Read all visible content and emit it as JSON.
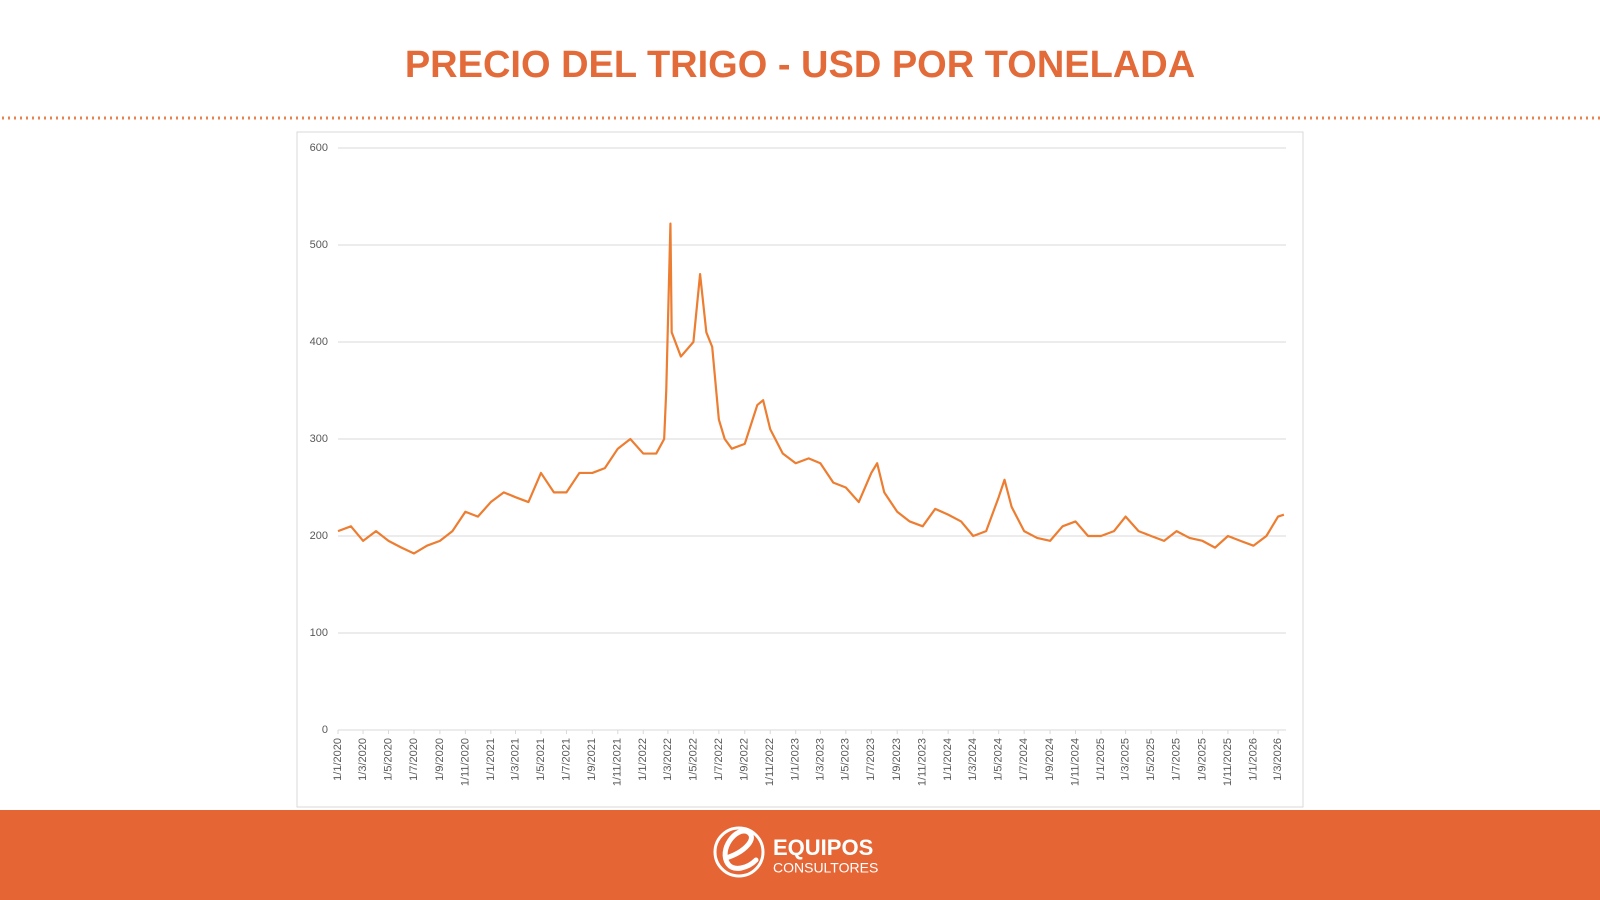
{
  "chart_data": {
    "type": "line",
    "title": "PRECIO DEL TRIGO - USD POR TONELADA",
    "x": [
      "1/1/2020",
      "1/2/2020",
      "1/3/2020",
      "1/4/2020",
      "1/5/2020",
      "1/6/2020",
      "1/7/2020",
      "1/8/2020",
      "1/9/2020",
      "1/10/2020",
      "1/11/2020",
      "1/12/2020",
      "1/1/2021",
      "1/2/2021",
      "1/3/2021",
      "1/4/2021",
      "1/5/2021",
      "1/6/2021",
      "1/7/2021",
      "1/8/2021",
      "1/9/2021",
      "1/10/2021",
      "1/11/2021",
      "1/12/2021",
      "1/1/2022",
      "1/2/2022",
      "20/2/2022",
      "25/2/2022",
      "7/3/2022",
      "10/3/2022",
      "1/4/2022",
      "1/5/2022",
      "17/5/2022",
      "1/6/2022",
      "15/6/2022",
      "1/7/2022",
      "15/7/2022",
      "1/8/2022",
      "1/9/2022",
      "1/10/2022",
      "15/10/2022",
      "1/11/2022",
      "1/12/2022",
      "1/1/2023",
      "1/2/2023",
      "1/3/2023",
      "1/4/2023",
      "1/5/2023",
      "1/6/2023",
      "1/7/2023",
      "15/7/2023",
      "1/8/2023",
      "1/9/2023",
      "1/10/2023",
      "1/11/2023",
      "1/12/2023",
      "1/1/2024",
      "1/2/2024",
      "1/3/2024",
      "1/4/2024",
      "1/5/2024",
      "15/5/2024",
      "1/6/2024",
      "1/7/2024",
      "1/8/2024",
      "1/9/2024",
      "1/10/2024",
      "1/11/2024",
      "1/12/2024",
      "1/1/2025",
      "1/2/2025",
      "1/3/2025",
      "1/4/2025",
      "1/5/2025",
      "1/6/2025",
      "1/7/2025",
      "1/8/2025",
      "1/9/2025",
      "1/10/2025",
      "1/11/2025",
      "1/12/2025",
      "1/1/2026",
      "1/2/2026",
      "1/3/2026",
      "15/3/2026"
    ],
    "series": [
      {
        "color": "#ed7d31",
        "values": [
          205,
          210,
          195,
          205,
          195,
          188,
          182,
          190,
          195,
          205,
          225,
          220,
          235,
          245,
          240,
          235,
          265,
          245,
          245,
          265,
          265,
          270,
          290,
          300,
          285,
          285,
          300,
          350,
          522,
          410,
          385,
          400,
          470,
          410,
          395,
          320,
          300,
          290,
          295,
          335,
          340,
          310,
          285,
          275,
          280,
          275,
          255,
          250,
          235,
          265,
          275,
          245,
          225,
          215,
          210,
          228,
          222,
          215,
          200,
          205,
          240,
          258,
          230,
          205,
          198,
          195,
          210,
          215,
          200,
          200,
          205,
          220,
          205,
          200,
          195,
          205,
          198,
          195,
          188,
          200,
          195,
          190,
          200,
          220,
          222
        ]
      }
    ],
    "xlim": [
      "1/1/2020",
      "20/3/2026"
    ],
    "xticks": [
      "1/1/2020",
      "1/3/2020",
      "1/5/2020",
      "1/7/2020",
      "1/9/2020",
      "1/11/2020",
      "1/1/2021",
      "1/3/2021",
      "1/5/2021",
      "1/7/2021",
      "1/9/2021",
      "1/11/2021",
      "1/1/2022",
      "1/3/2022",
      "1/5/2022",
      "1/7/2022",
      "1/9/2022",
      "1/11/2022",
      "1/1/2023",
      "1/3/2023",
      "1/5/2023",
      "1/7/2023",
      "1/9/2023",
      "1/11/2023",
      "1/1/2024",
      "1/3/2024",
      "1/5/2024",
      "1/7/2024",
      "1/9/2024",
      "1/11/2024",
      "1/1/2025",
      "1/3/2025",
      "1/5/2025",
      "1/7/2025",
      "1/9/2025",
      "1/11/2025",
      "1/1/2026",
      "1/3/2026"
    ],
    "ylim": [
      0,
      600
    ],
    "yticks": [
      0,
      100,
      200,
      300,
      400,
      500,
      600
    ],
    "grid": true
  },
  "footer": {
    "brand": "EQUIPOS",
    "tagline": "CONSULTORES"
  }
}
